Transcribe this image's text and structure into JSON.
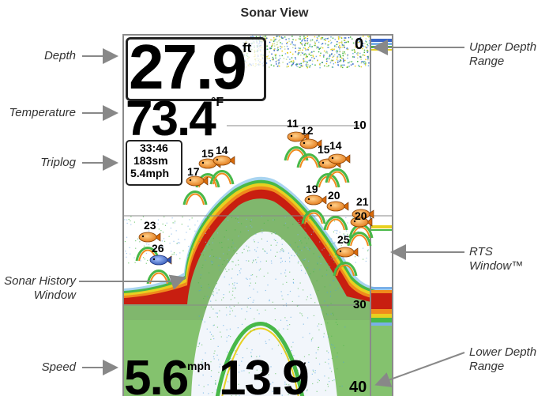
{
  "title": "Sonar View",
  "callouts": {
    "depth": "Depth",
    "temperature": "Temperature",
    "triplog": "Triplog",
    "history_line1": "Sonar History",
    "history_line2": "Window",
    "speed": "Speed",
    "upper_range_line1": "Upper Depth",
    "upper_range_line2": "Range",
    "rts": "RTS Window™",
    "lower_range_line1": "Lower Depth",
    "lower_range_line2": "Range"
  },
  "readouts": {
    "depth_value": "27.9",
    "depth_unit": "ft",
    "temperature_value": "73.4",
    "temperature_unit": "°F",
    "trip_time": "33:46",
    "trip_distance": "183sm",
    "trip_speed": "5.4mph",
    "speed_value": "5.6",
    "speed_unit": "mph",
    "voltage_value": "13.9",
    "voltage_unit": "V"
  },
  "depth_scale": [
    "0",
    "10",
    "30",
    "40"
  ],
  "fish": [
    {
      "label": "11",
      "color": "#f08a1c"
    },
    {
      "label": "12",
      "color": "#f08a1c"
    },
    {
      "label": "15",
      "color": "#f08a1c"
    },
    {
      "label": "14",
      "color": "#f08a1c"
    },
    {
      "label": "15",
      "color": "#f08a1c"
    },
    {
      "label": "14",
      "color": "#f08a1c"
    },
    {
      "label": "17",
      "color": "#f08a1c"
    },
    {
      "label": "19",
      "color": "#f08a1c"
    },
    {
      "label": "20",
      "color": "#f08a1c"
    },
    {
      "label": "21",
      "color": "#f08a1c"
    },
    {
      "label": "20",
      "color": "#f08a1c"
    },
    {
      "label": "23",
      "color": "#f08a1c"
    },
    {
      "label": "26",
      "color": "#3a66c8"
    },
    {
      "label": "25",
      "color": "#f08a1c"
    }
  ],
  "colors": {
    "bottom_red": "#c81e10",
    "bottom_orange": "#f08a1c",
    "bottom_yellow": "#e8d020",
    "bottom_green": "#48b848",
    "bottom_blue": "#4aa0e0",
    "fish_orange": "#f08a1c",
    "fish_blue": "#3a66c8"
  }
}
